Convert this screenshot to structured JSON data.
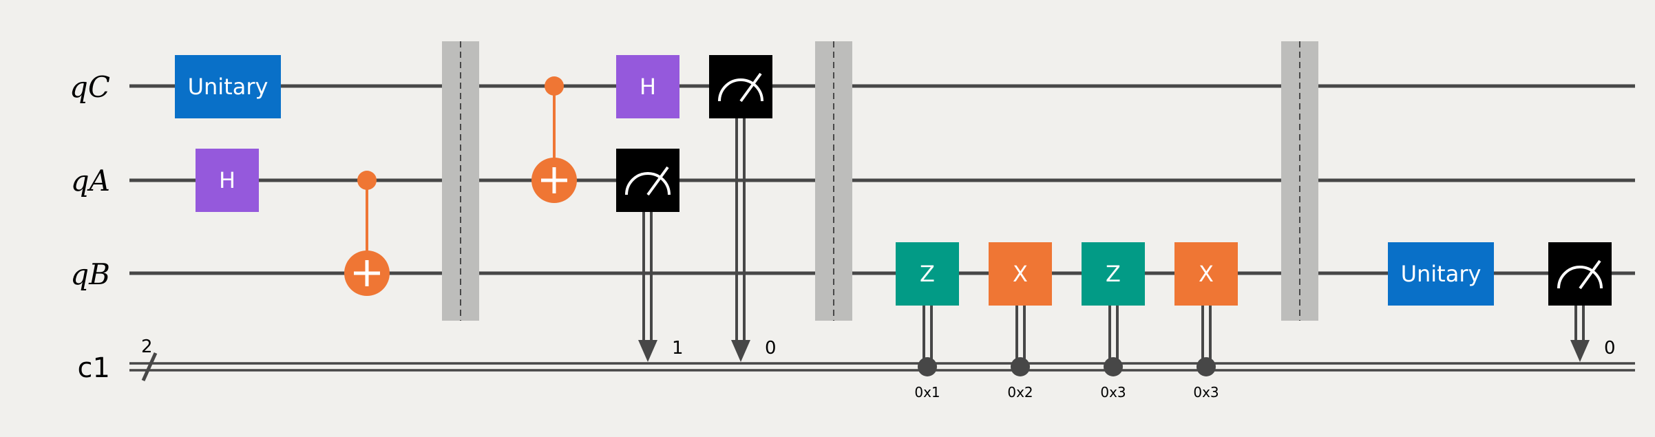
{
  "colors": {
    "background": "#f1f0ed",
    "wire": "#474747",
    "unitary": "#0970c8",
    "hadamard": "#9559dc",
    "pauli_z": "#029b86",
    "pauli_x": "#ef7634",
    "cnot": "#ef7634",
    "measure": "#000000",
    "barrier": "#bdbdbb"
  },
  "wires": {
    "qC": "qC",
    "qA": "qA",
    "qB": "qB",
    "c1": "c1",
    "c1_width": "2"
  },
  "gates": {
    "unitary_label": "Unitary",
    "hadamard_label": "H",
    "z_label": "Z",
    "x_label": "X"
  },
  "measurements": {
    "m_qA_bit": "1",
    "m_qC_bit": "0",
    "m_qB_bit": "0"
  },
  "conditions": {
    "z1": "0x1",
    "x2": "0x2",
    "z3": "0x3",
    "x3": "0x3"
  }
}
